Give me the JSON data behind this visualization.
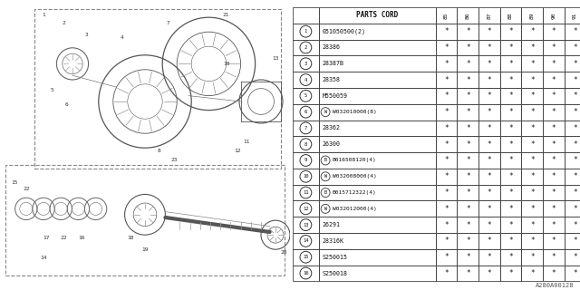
{
  "bg_color": "#ffffff",
  "col_headers": [
    "PARTS CORD",
    "85",
    "86",
    "87",
    "88",
    "89",
    "90",
    "91"
  ],
  "rows": [
    [
      "1",
      "051050500(2)",
      "*",
      "*",
      "*",
      "*",
      "*",
      "*",
      "*"
    ],
    [
      "2",
      "28386",
      "*",
      "*",
      "*",
      "*",
      "*",
      "*",
      "*"
    ],
    [
      "3",
      "28387B",
      "*",
      "*",
      "*",
      "*",
      "*",
      "*",
      "*"
    ],
    [
      "4",
      "28358",
      "*",
      "*",
      "*",
      "*",
      "*",
      "*",
      "*"
    ],
    [
      "5",
      "M550059",
      "*",
      "*",
      "*",
      "*",
      "*",
      "*",
      "*"
    ],
    [
      "6",
      "W032010000(8)",
      "*",
      "*",
      "*",
      "*",
      "*",
      "*",
      "*"
    ],
    [
      "7",
      "28362",
      "*",
      "*",
      "*",
      "*",
      "*",
      "*",
      "*"
    ],
    [
      "8",
      "26300",
      "*",
      "*",
      "*",
      "*",
      "*",
      "*",
      "*"
    ],
    [
      "9",
      "B016508120(4)",
      "*",
      "*",
      "*",
      "*",
      "*",
      "*",
      "*"
    ],
    [
      "10",
      "W032008000(4)",
      "*",
      "*",
      "*",
      "*",
      "*",
      "*",
      "*"
    ],
    [
      "11",
      "B015712322(4)",
      "*",
      "*",
      "*",
      "*",
      "*",
      "*",
      "*"
    ],
    [
      "12",
      "W032012000(4)",
      "*",
      "*",
      "*",
      "*",
      "*",
      "*",
      "*"
    ],
    [
      "13",
      "26291",
      "*",
      "*",
      "*",
      "*",
      "*",
      "*",
      "*"
    ],
    [
      "14",
      "28316K",
      "*",
      "*",
      "*",
      "*",
      "*",
      "*",
      "*"
    ],
    [
      "15",
      "S250015",
      "*",
      "*",
      "*",
      "*",
      "*",
      "*",
      "*"
    ],
    [
      "16",
      "S250018",
      "*",
      "*",
      "*",
      "*",
      "*",
      "*",
      "*"
    ]
  ],
  "footer_text": "A280A00128",
  "special_prefixes": {
    "6": "W",
    "9": "B",
    "10": "W",
    "11": "B",
    "12": "W"
  }
}
